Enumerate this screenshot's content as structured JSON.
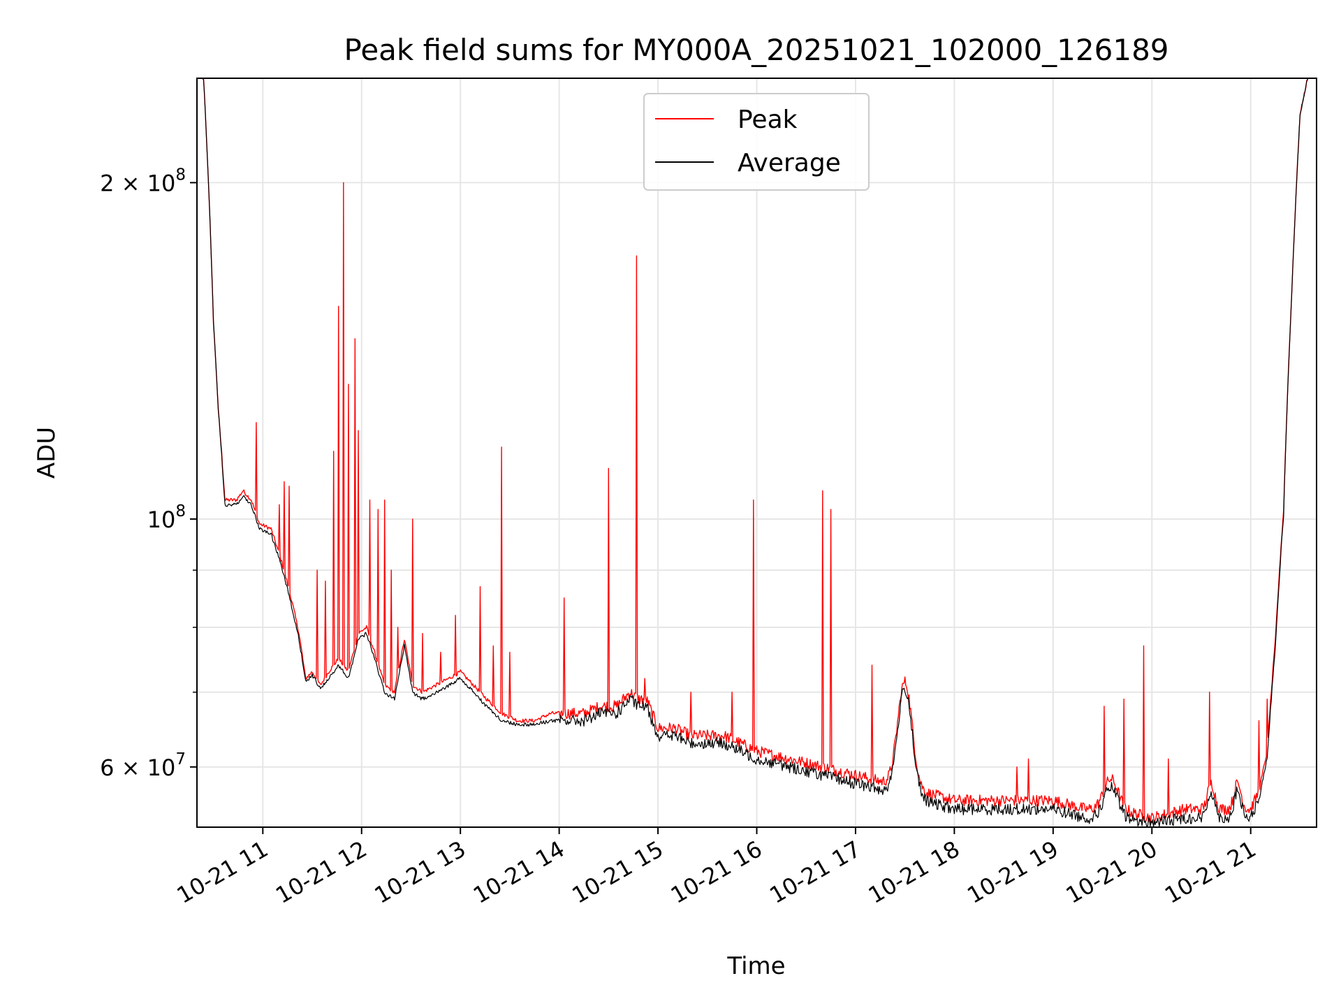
{
  "chart_data": {
    "type": "line",
    "title": "Peak field sums for MY000A_20251021_102000_126189",
    "xlabel": "Time",
    "ylabel": "ADU",
    "x_type": "time",
    "xlim": [
      "2025-10-21 10:20",
      "2025-10-21 21:40"
    ],
    "ylim": [
      53000000,
      248000000
    ],
    "y_scale": "log",
    "grid": true,
    "legend_position": "upper center",
    "x_ticks": [
      {
        "value": "2025-10-21 11:00",
        "label": "10-21 11"
      },
      {
        "value": "2025-10-21 12:00",
        "label": "10-21 12"
      },
      {
        "value": "2025-10-21 13:00",
        "label": "10-21 13"
      },
      {
        "value": "2025-10-21 14:00",
        "label": "10-21 14"
      },
      {
        "value": "2025-10-21 15:00",
        "label": "10-21 15"
      },
      {
        "value": "2025-10-21 16:00",
        "label": "10-21 16"
      },
      {
        "value": "2025-10-21 17:00",
        "label": "10-21 17"
      },
      {
        "value": "2025-10-21 18:00",
        "label": "10-21 18"
      },
      {
        "value": "2025-10-21 19:00",
        "label": "10-21 19"
      },
      {
        "value": "2025-10-21 20:00",
        "label": "10-21 20"
      },
      {
        "value": "2025-10-21 21:00",
        "label": "10-21 21"
      }
    ],
    "y_ticks": [
      {
        "value": 60000000,
        "base": "6 × 10",
        "exp": "7"
      },
      {
        "value": 100000000,
        "base": "10",
        "exp": "8"
      },
      {
        "value": 200000000,
        "base": "2 × 10",
        "exp": "8"
      }
    ],
    "y_minor_ticks": [
      70000000,
      80000000,
      90000000
    ],
    "series": [
      {
        "name": "Peak",
        "color": "#ff0000",
        "baseline": [
          [
            "2025-10-21 10:20",
            250000000
          ],
          [
            "2025-10-21 10:24",
            248000000
          ],
          [
            "2025-10-21 10:27",
            200000000
          ],
          [
            "2025-10-21 10:30",
            150000000
          ],
          [
            "2025-10-21 10:33",
            125000000
          ],
          [
            "2025-10-21 10:37",
            104000000
          ],
          [
            "2025-10-21 10:44",
            104000000
          ],
          [
            "2025-10-21 10:48",
            106000000
          ],
          [
            "2025-10-21 10:53",
            104000000
          ],
          [
            "2025-10-21 10:58",
            99000000
          ],
          [
            "2025-10-21 11:05",
            98000000
          ],
          [
            "2025-10-21 11:12",
            91000000
          ],
          [
            "2025-10-21 11:18",
            84000000
          ],
          [
            "2025-10-21 11:22",
            79000000
          ],
          [
            "2025-10-21 11:26",
            72000000
          ],
          [
            "2025-10-21 11:30",
            73000000
          ],
          [
            "2025-10-21 11:35",
            71000000
          ],
          [
            "2025-10-21 11:40",
            73000000
          ],
          [
            "2025-10-21 11:46",
            75000000
          ],
          [
            "2025-10-21 11:52",
            73000000
          ],
          [
            "2025-10-21 11:58",
            79000000
          ],
          [
            "2025-10-21 12:03",
            80000000
          ],
          [
            "2025-10-21 12:09",
            75000000
          ],
          [
            "2025-10-21 12:14",
            71000000
          ],
          [
            "2025-10-21 12:20",
            70000000
          ],
          [
            "2025-10-21 12:26",
            78000000
          ],
          [
            "2025-10-21 12:31",
            71000000
          ],
          [
            "2025-10-21 12:37",
            70000000
          ],
          [
            "2025-10-21 12:45",
            71000000
          ],
          [
            "2025-10-21 12:53",
            72000000
          ],
          [
            "2025-10-21 13:00",
            73000000
          ],
          [
            "2025-10-21 13:08",
            71000000
          ],
          [
            "2025-10-21 13:16",
            69000000
          ],
          [
            "2025-10-21 13:25",
            67000000
          ],
          [
            "2025-10-21 13:35",
            66000000
          ],
          [
            "2025-10-21 13:45",
            66000000
          ],
          [
            "2025-10-21 13:55",
            67000000
          ],
          [
            "2025-10-21 14:05",
            67000000
          ],
          [
            "2025-10-21 14:15",
            67000000
          ],
          [
            "2025-10-21 14:25",
            68000000
          ],
          [
            "2025-10-21 14:35",
            68000000
          ],
          [
            "2025-10-21 14:43",
            70000000
          ],
          [
            "2025-10-21 14:48",
            69000000
          ],
          [
            "2025-10-21 14:53",
            69000000
          ],
          [
            "2025-10-21 15:00",
            65000000
          ],
          [
            "2025-10-21 15:10",
            65000000
          ],
          [
            "2025-10-21 15:20",
            64000000
          ],
          [
            "2025-10-21 15:30",
            64000000
          ],
          [
            "2025-10-21 15:40",
            64000000
          ],
          [
            "2025-10-21 15:50",
            63000000
          ],
          [
            "2025-10-21 16:00",
            62000000
          ],
          [
            "2025-10-21 16:20",
            61000000
          ],
          [
            "2025-10-21 16:40",
            60000000
          ],
          [
            "2025-10-21 17:00",
            59000000
          ],
          [
            "2025-10-21 17:20",
            58000000
          ],
          [
            "2025-10-21 17:40",
            57000000
          ],
          [
            "2025-10-21 18:00",
            56000000
          ],
          [
            "2025-10-21 18:20",
            56000000
          ],
          [
            "2025-10-21 18:40",
            56000000
          ],
          [
            "2025-10-21 19:00",
            56000000
          ],
          [
            "2025-10-21 19:20",
            55000000
          ],
          [
            "2025-10-21 19:40",
            55000000
          ],
          [
            "2025-10-21 20:00",
            54000000
          ],
          [
            "2025-10-21 20:20",
            55000000
          ],
          [
            "2025-10-21 20:40",
            55000000
          ],
          [
            "2025-10-21 21:00",
            55000000
          ],
          [
            "2025-10-21 21:05",
            57000000
          ],
          [
            "2025-10-21 21:10",
            62000000
          ],
          [
            "2025-10-21 21:15",
            78000000
          ],
          [
            "2025-10-21 21:20",
            102000000
          ],
          [
            "2025-10-21 21:25",
            160000000
          ],
          [
            "2025-10-21 21:30",
            230000000
          ],
          [
            "2025-10-21 21:35",
            250000000
          ],
          [
            "2025-10-21 21:40",
            255000000
          ]
        ],
        "bumps": [
          [
            "2025-10-21 17:30",
            14000000,
            6
          ],
          [
            "2025-10-21 19:35",
            3500000,
            6
          ],
          [
            "2025-10-21 20:36",
            3000000,
            3
          ],
          [
            "2025-10-21 20:52",
            3000000,
            3
          ]
        ],
        "spikes": [
          [
            "2025-10-21 10:56",
            122000000
          ],
          [
            "2025-10-21 11:10",
            103000000
          ],
          [
            "2025-10-21 11:13",
            108000000
          ],
          [
            "2025-10-21 11:16",
            107000000
          ],
          [
            "2025-10-21 11:33",
            90000000
          ],
          [
            "2025-10-21 11:38",
            88000000
          ],
          [
            "2025-10-21 11:43",
            115000000
          ],
          [
            "2025-10-21 11:46",
            155000000
          ],
          [
            "2025-10-21 11:49",
            200000000
          ],
          [
            "2025-10-21 11:52",
            132000000
          ],
          [
            "2025-10-21 11:56",
            145000000
          ],
          [
            "2025-10-21 11:58",
            120000000
          ],
          [
            "2025-10-21 12:05",
            104000000
          ],
          [
            "2025-10-21 12:10",
            102000000
          ],
          [
            "2025-10-21 12:14",
            104000000
          ],
          [
            "2025-10-21 12:18",
            90000000
          ],
          [
            "2025-10-21 12:22",
            80000000
          ],
          [
            "2025-10-21 12:31",
            100000000
          ],
          [
            "2025-10-21 12:37",
            79000000
          ],
          [
            "2025-10-21 12:48",
            76000000
          ],
          [
            "2025-10-21 12:57",
            82000000
          ],
          [
            "2025-10-21 13:12",
            87000000
          ],
          [
            "2025-10-21 13:20",
            77000000
          ],
          [
            "2025-10-21 13:25",
            116000000
          ],
          [
            "2025-10-21 13:30",
            76000000
          ],
          [
            "2025-10-21 14:03",
            85000000
          ],
          [
            "2025-10-21 14:30",
            111000000
          ],
          [
            "2025-10-21 14:47",
            172000000
          ],
          [
            "2025-10-21 14:52",
            72000000
          ],
          [
            "2025-10-21 15:20",
            70000000
          ],
          [
            "2025-10-21 15:45",
            70000000
          ],
          [
            "2025-10-21 15:58",
            104000000
          ],
          [
            "2025-10-21 16:40",
            106000000
          ],
          [
            "2025-10-21 16:45",
            102000000
          ],
          [
            "2025-10-21 17:10",
            74000000
          ],
          [
            "2025-10-21 18:38",
            60000000
          ],
          [
            "2025-10-21 18:45",
            61000000
          ],
          [
            "2025-10-21 19:31",
            68000000
          ],
          [
            "2025-10-21 19:43",
            69000000
          ],
          [
            "2025-10-21 19:55",
            77000000
          ],
          [
            "2025-10-21 20:10",
            61000000
          ],
          [
            "2025-10-21 20:35",
            70000000
          ],
          [
            "2025-10-21 21:05",
            66000000
          ],
          [
            "2025-10-21 21:10",
            69000000
          ]
        ]
      },
      {
        "name": "Average",
        "color": "#000000",
        "baseline": [
          [
            "2025-10-21 10:20",
            250000000
          ],
          [
            "2025-10-21 10:24",
            248000000
          ],
          [
            "2025-10-21 10:27",
            200000000
          ],
          [
            "2025-10-21 10:30",
            150000000
          ],
          [
            "2025-10-21 10:33",
            125000000
          ],
          [
            "2025-10-21 10:37",
            103000000
          ],
          [
            "2025-10-21 10:44",
            103000000
          ],
          [
            "2025-10-21 10:48",
            105000000
          ],
          [
            "2025-10-21 10:53",
            103000000
          ],
          [
            "2025-10-21 10:58",
            98000000
          ],
          [
            "2025-10-21 11:05",
            97000000
          ],
          [
            "2025-10-21 11:12",
            90000000
          ],
          [
            "2025-10-21 11:18",
            83000000
          ],
          [
            "2025-10-21 11:22",
            78000000
          ],
          [
            "2025-10-21 11:26",
            71500000
          ],
          [
            "2025-10-21 11:30",
            72500000
          ],
          [
            "2025-10-21 11:35",
            70500000
          ],
          [
            "2025-10-21 11:40",
            72000000
          ],
          [
            "2025-10-21 11:46",
            74000000
          ],
          [
            "2025-10-21 11:52",
            72000000
          ],
          [
            "2025-10-21 11:58",
            78000000
          ],
          [
            "2025-10-21 12:03",
            79000000
          ],
          [
            "2025-10-21 12:09",
            74000000
          ],
          [
            "2025-10-21 12:14",
            70000000
          ],
          [
            "2025-10-21 12:20",
            69000000
          ],
          [
            "2025-10-21 12:26",
            77000000
          ],
          [
            "2025-10-21 12:31",
            70000000
          ],
          [
            "2025-10-21 12:37",
            69000000
          ],
          [
            "2025-10-21 12:45",
            70000000
          ],
          [
            "2025-10-21 12:53",
            71000000
          ],
          [
            "2025-10-21 13:00",
            72000000
          ],
          [
            "2025-10-21 13:08",
            70000000
          ],
          [
            "2025-10-21 13:16",
            68000000
          ],
          [
            "2025-10-21 13:25",
            66000000
          ],
          [
            "2025-10-21 13:35",
            65500000
          ],
          [
            "2025-10-21 13:45",
            65500000
          ],
          [
            "2025-10-21 13:55",
            66000000
          ],
          [
            "2025-10-21 14:05",
            66000000
          ],
          [
            "2025-10-21 14:15",
            66000000
          ],
          [
            "2025-10-21 14:25",
            67000000
          ],
          [
            "2025-10-21 14:35",
            67000000
          ],
          [
            "2025-10-21 14:43",
            69000000
          ],
          [
            "2025-10-21 14:48",
            68000000
          ],
          [
            "2025-10-21 14:53",
            68000000
          ],
          [
            "2025-10-21 15:00",
            64000000
          ],
          [
            "2025-10-21 15:10",
            64000000
          ],
          [
            "2025-10-21 15:20",
            63000000
          ],
          [
            "2025-10-21 15:30",
            63000000
          ],
          [
            "2025-10-21 15:40",
            63000000
          ],
          [
            "2025-10-21 15:50",
            62000000
          ],
          [
            "2025-10-21 16:00",
            61000000
          ],
          [
            "2025-10-21 16:20",
            60000000
          ],
          [
            "2025-10-21 16:40",
            59000000
          ],
          [
            "2025-10-21 17:00",
            58000000
          ],
          [
            "2025-10-21 17:20",
            57000000
          ],
          [
            "2025-10-21 17:40",
            56000000
          ],
          [
            "2025-10-21 18:00",
            55000000
          ],
          [
            "2025-10-21 18:20",
            55000000
          ],
          [
            "2025-10-21 18:40",
            55000000
          ],
          [
            "2025-10-21 19:00",
            55000000
          ],
          [
            "2025-10-21 19:20",
            54000000
          ],
          [
            "2025-10-21 19:40",
            54000000
          ],
          [
            "2025-10-21 20:00",
            53500000
          ],
          [
            "2025-10-21 20:20",
            54000000
          ],
          [
            "2025-10-21 20:40",
            54000000
          ],
          [
            "2025-10-21 21:00",
            54000000
          ],
          [
            "2025-10-21 21:05",
            56000000
          ],
          [
            "2025-10-21 21:10",
            61000000
          ],
          [
            "2025-10-21 21:15",
            77000000
          ],
          [
            "2025-10-21 21:20",
            101000000
          ],
          [
            "2025-10-21 21:25",
            160000000
          ],
          [
            "2025-10-21 21:30",
            230000000
          ],
          [
            "2025-10-21 21:35",
            250000000
          ],
          [
            "2025-10-21 21:40",
            255000000
          ]
        ],
        "bumps": [
          [
            "2025-10-21 17:30",
            14000000,
            6
          ],
          [
            "2025-10-21 19:35",
            3500000,
            6
          ],
          [
            "2025-10-21 20:36",
            3000000,
            3
          ],
          [
            "2025-10-21 20:52",
            3000000,
            3
          ]
        ],
        "spikes": []
      }
    ]
  }
}
